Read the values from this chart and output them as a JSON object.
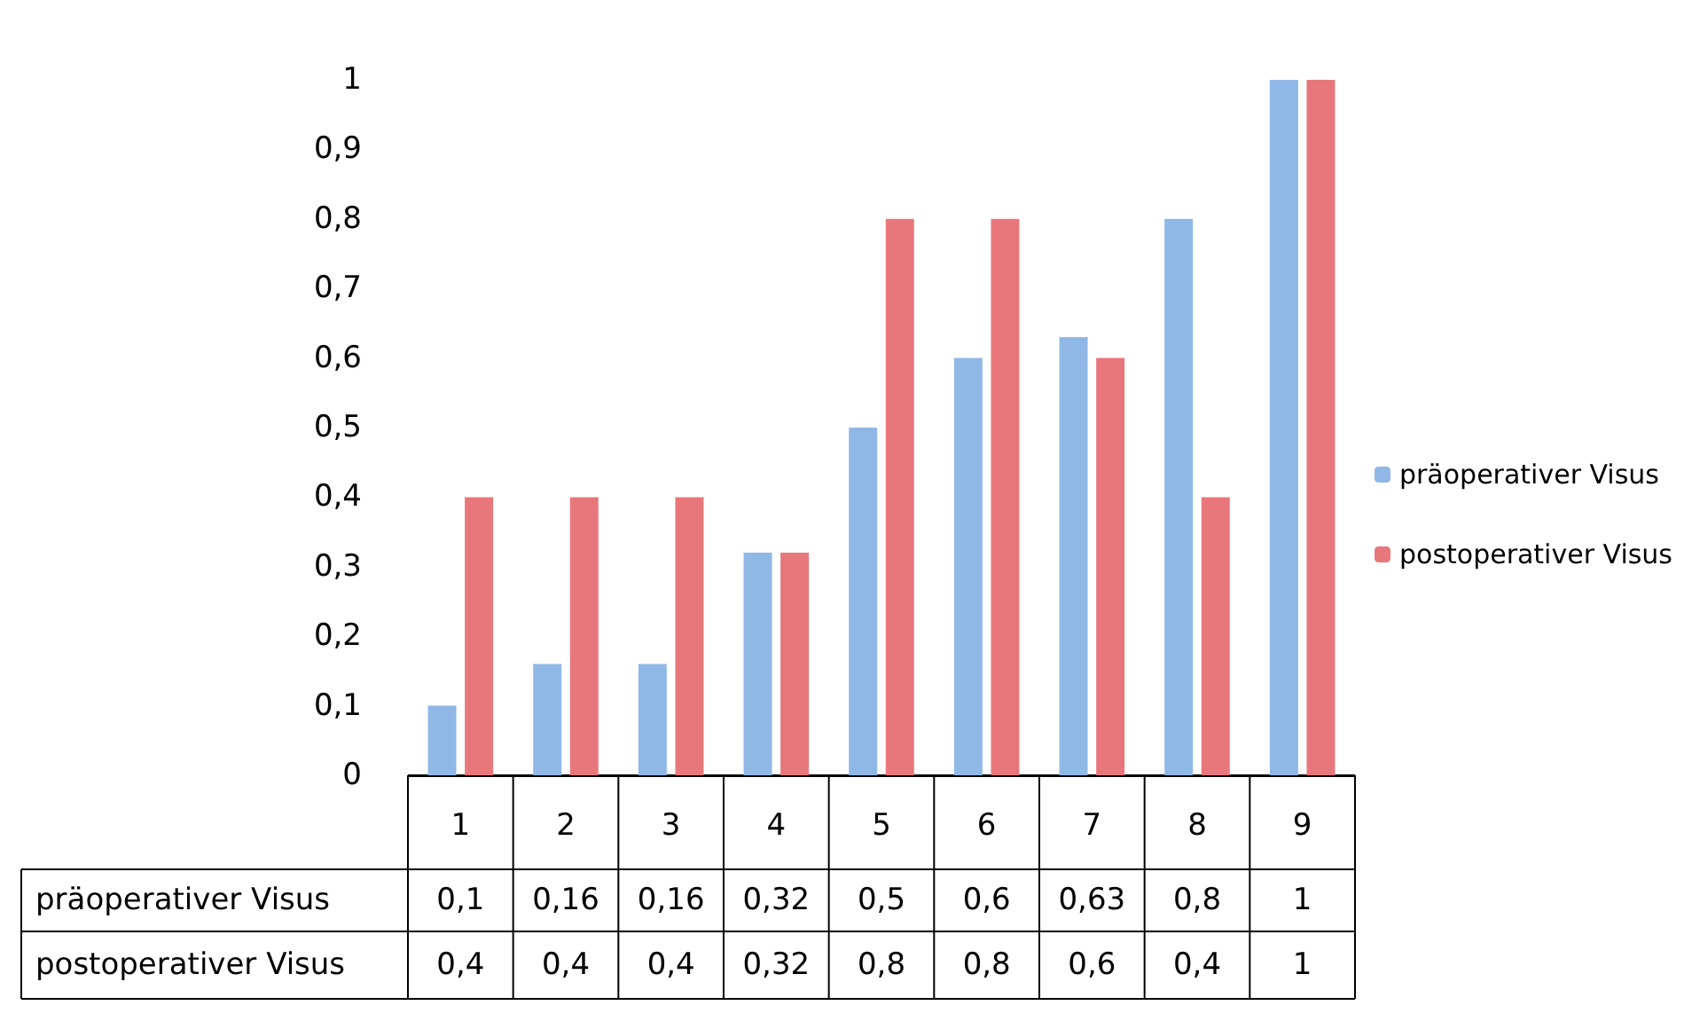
{
  "chart_data": {
    "type": "bar",
    "categories": [
      "1",
      "2",
      "3",
      "4",
      "5",
      "6",
      "7",
      "8",
      "9"
    ],
    "series": [
      {
        "name": "präoperativer Visus",
        "color": "#8fb8e6",
        "values": [
          0.1,
          0.16,
          0.16,
          0.32,
          0.5,
          0.6,
          0.63,
          0.8,
          1
        ],
        "value_labels": [
          "0,1",
          "0,16",
          "0,16",
          "0,32",
          "0,5",
          "0,6",
          "0,63",
          "0,8",
          "1"
        ]
      },
      {
        "name": "postoperativer Visus",
        "color": "#e8777b",
        "values": [
          0.4,
          0.4,
          0.4,
          0.32,
          0.8,
          0.8,
          0.6,
          0.4,
          1
        ],
        "value_labels": [
          "0,4",
          "0,4",
          "0,4",
          "0,32",
          "0,8",
          "0,8",
          "0,6",
          "0,4",
          "1"
        ]
      }
    ],
    "ylim": [
      0,
      1
    ],
    "yticks": [
      0,
      {
        "value": 0.1,
        "label": "0,1"
      },
      {
        "value": 0.2,
        "label": "0,2"
      },
      {
        "value": 0.3,
        "label": "0,3"
      },
      {
        "value": 0.4,
        "label": "0,4"
      },
      {
        "value": 0.5,
        "label": "0,5"
      },
      {
        "value": 0.6,
        "label": "0,6"
      },
      {
        "value": 0.7,
        "label": "0,7"
      },
      {
        "value": 0.8,
        "label": "0,8"
      },
      {
        "value": 0.9,
        "label": "0,9"
      },
      1
    ],
    "grid": false,
    "legend": "right"
  }
}
